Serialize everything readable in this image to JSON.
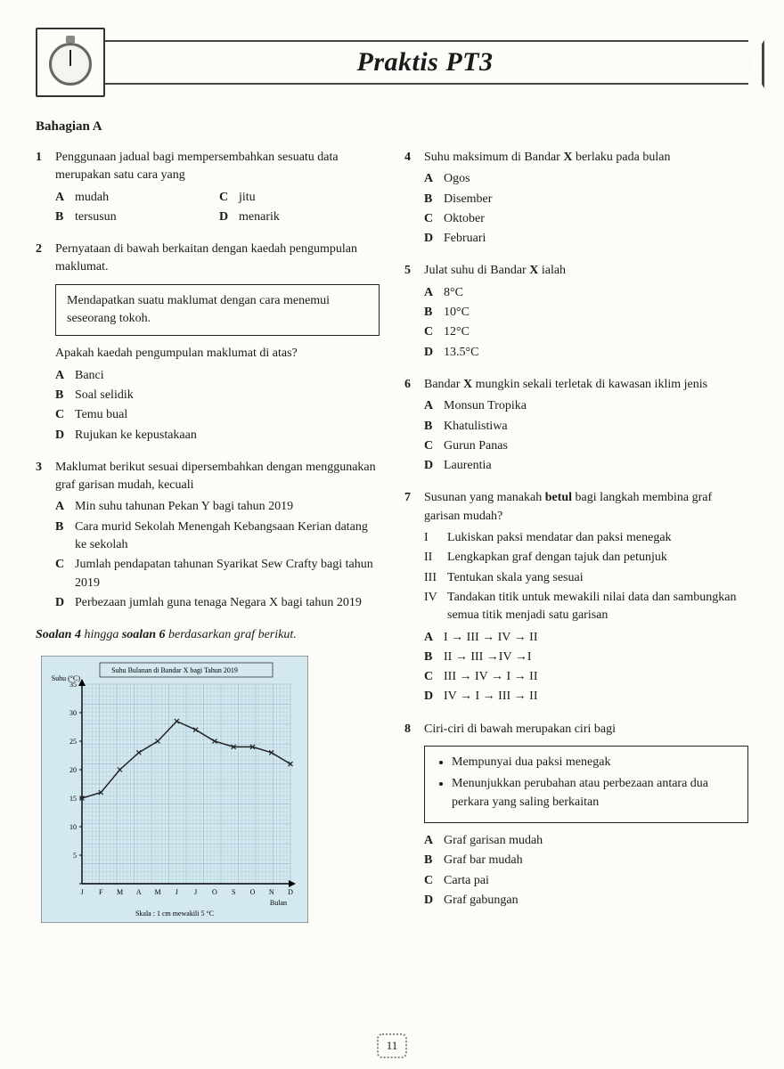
{
  "header": {
    "title": "Praktis PT3"
  },
  "section_title": "Bahagian A",
  "page_number": "11",
  "instruction_line": "Soalan 4 hingga soalan 6 berdasarkan graf berikut.",
  "chart": {
    "type": "line",
    "title": "Suhu Bulanan di Bandar X bagi Tahun 2019",
    "ylabel": "Suhu (°C)",
    "xlabel": "Bulan",
    "scale_note": "Skala : 1 cm mewakili 5 °C",
    "categories": [
      "J",
      "F",
      "M",
      "A",
      "M",
      "J",
      "J",
      "O",
      "S",
      "O",
      "N",
      "D"
    ],
    "values": [
      15,
      16,
      20,
      23,
      25,
      28.5,
      27,
      25,
      24,
      24,
      23,
      21
    ],
    "ylim": [
      0,
      35
    ],
    "ytick_step": 5,
    "yticks": [
      0,
      5,
      10,
      15,
      20,
      25,
      30,
      35
    ],
    "line_color": "#222222",
    "marker": "x",
    "marker_size": 5,
    "background_color": "#d4e8f0",
    "grid_color": "#8cb0c0",
    "axis_color": "#000000",
    "title_fontsize": 8,
    "label_fontsize": 8
  },
  "left": {
    "q1": {
      "num": "1",
      "stem": "Penggunaan jadual bagi mempersembahkan sesuatu data merupakan satu cara yang",
      "A": "mudah",
      "B": "tersusun",
      "C": "jitu",
      "D": "menarik"
    },
    "q2": {
      "num": "2",
      "stem": "Pernyataan di bawah berkaitan dengan kaedah pengumpulan maklumat.",
      "box": "Mendapatkan suatu maklumat dengan cara menemui seseorang tokoh.",
      "sub": "Apakah kaedah pengumpulan maklumat di atas?",
      "A": "Banci",
      "B": "Soal selidik",
      "C": "Temu bual",
      "D": "Rujukan ke kepustakaan"
    },
    "q3": {
      "num": "3",
      "stem": "Maklumat berikut sesuai dipersembahkan dengan menggunakan graf garisan mudah, kecuali",
      "A": "Min suhu tahunan Pekan Y bagi tahun 2019",
      "B": "Cara murid Sekolah Menengah Kebangsaan Kerian datang ke sekolah",
      "C": "Jumlah pendapatan tahunan Syarikat Sew Crafty bagi tahun 2019",
      "D": "Perbezaan jumlah guna tenaga Negara X bagi tahun 2019"
    }
  },
  "right": {
    "q4": {
      "num": "4",
      "stem_pre": "Suhu maksimum di Bandar ",
      "stem_bold": "X",
      "stem_post": " berlaku pada bulan",
      "A": "Ogos",
      "B": "Disember",
      "C": "Oktober",
      "D": "Februari"
    },
    "q5": {
      "num": "5",
      "stem_pre": "Julat suhu di Bandar ",
      "stem_bold": "X",
      "stem_post": " ialah",
      "A": "8°C",
      "B": "10°C",
      "C": "12°C",
      "D": "13.5°C"
    },
    "q6": {
      "num": "6",
      "stem_pre": "Bandar ",
      "stem_bold": "X",
      "stem_post": " mungkin sekali terletak di kawasan iklim jenis",
      "A": "Monsun Tropika",
      "B": "Khatulistiwa",
      "C": "Gurun Panas",
      "D": "Laurentia"
    },
    "q7": {
      "num": "7",
      "stem_pre": "Susunan yang manakah ",
      "stem_bold": "betul",
      "stem_post": " bagi langkah membina graf garisan mudah?",
      "I": "Lukiskan paksi mendatar dan paksi menegak",
      "II": "Lengkapkan graf dengan tajuk dan petunjuk",
      "III": "Tentukan skala yang sesuai",
      "IV": "Tandakan titik untuk mewakili nilai data dan sambungkan semua titik menjadi satu garisan",
      "A": "I → III → IV → II",
      "B": "II → III →IV →I",
      "C": "III → IV → I → II",
      "D": "IV → I → III → II"
    },
    "q8": {
      "num": "8",
      "stem": "Ciri-ciri di bawah merupakan ciri bagi",
      "box1": "Mempunyai dua paksi menegak",
      "box2": "Menunjukkan perubahan atau perbezaan antara dua perkara yang saling berkaitan",
      "A": "Graf garisan mudah",
      "B": "Graf bar mudah",
      "C": "Carta pai",
      "D": "Graf gabungan"
    }
  }
}
